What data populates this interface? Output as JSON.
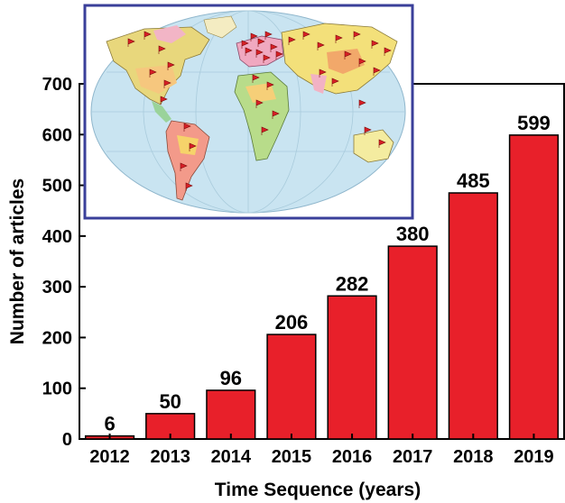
{
  "chart_data": {
    "type": "bar",
    "title": "",
    "xlabel": "Time Sequence (years)",
    "ylabel": "Number of articles",
    "categories": [
      "2012",
      "2013",
      "2014",
      "2015",
      "2016",
      "2017",
      "2018",
      "2019"
    ],
    "values": [
      6,
      50,
      96,
      206,
      282,
      380,
      485,
      599
    ],
    "value_labels": [
      "6",
      "50",
      "96",
      "206",
      "282",
      "380",
      "485",
      "599"
    ],
    "ylim": [
      0,
      700
    ],
    "yticks": [
      "0",
      "100",
      "200",
      "300",
      "400",
      "500",
      "600",
      "700"
    ],
    "bar_color": "#e8202a",
    "bar_edge_color": "#000000",
    "grid": false,
    "legend": "none",
    "inset": {
      "type": "world-map",
      "border_color": "#3a3f9a",
      "marker_color": "#d81f26"
    }
  }
}
